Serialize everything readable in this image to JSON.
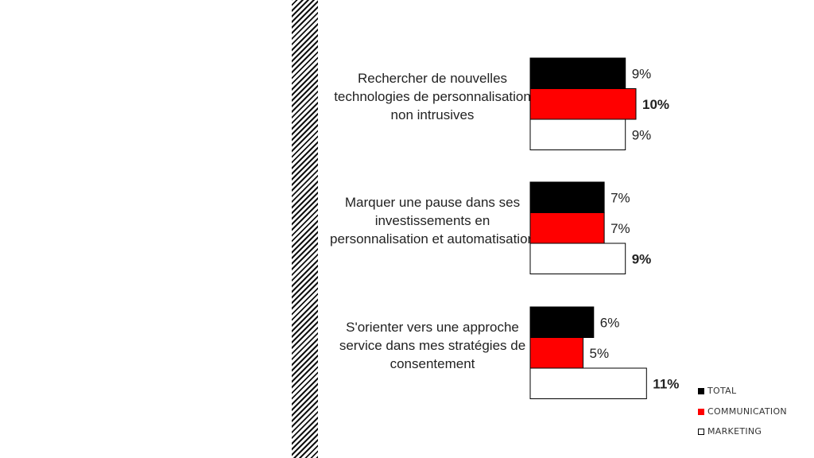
{
  "chart_data": {
    "type": "bar",
    "orientation": "horizontal",
    "categories": [
      "Rechercher de nouvelles technologies de personnalisation non intrusives",
      "Marquer une pause dans ses investissements en personnalisation et automatisation",
      "S'orienter vers une approche service dans mes stratégies de consentement"
    ],
    "series": [
      {
        "name": "TOTAL",
        "values": [
          9,
          7,
          6
        ],
        "labels": [
          "9%",
          "7%",
          "6%"
        ],
        "bold": [
          false,
          false,
          false
        ],
        "color": "#000000"
      },
      {
        "name": "COMMUNICATION",
        "values": [
          10,
          7,
          5
        ],
        "labels": [
          "10%",
          "7%",
          "5%"
        ],
        "bold": [
          true,
          false,
          false
        ],
        "color": "#ff0000"
      },
      {
        "name": "MARKETING",
        "values": [
          9,
          9,
          11
        ],
        "labels": [
          "9%",
          "9%",
          "11%"
        ],
        "bold": [
          false,
          true,
          true
        ],
        "color": "#ffffff"
      }
    ],
    "legend_position": "bottom-right",
    "grid": false
  }
}
